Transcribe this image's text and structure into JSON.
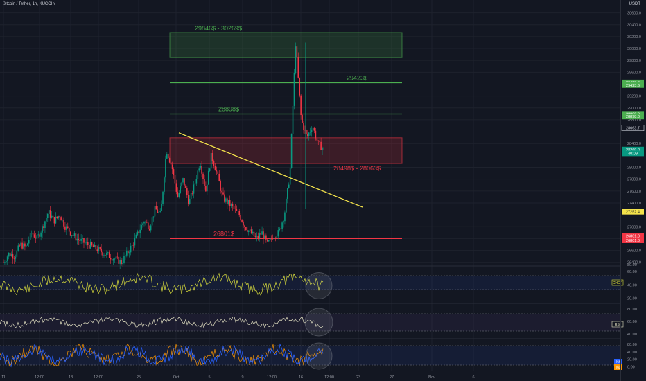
{
  "header": {
    "symbol_title": "Bitcoin / Tether, 1h, KUCOIN",
    "currency": "USDT"
  },
  "colors": {
    "background": "#131722",
    "grid": "#1e222d",
    "green": "#4caf50",
    "red": "#f23645",
    "yellow": "#f4e34b",
    "rsi_line": "#e8e6c6",
    "stoch_k": "#2962ff",
    "stoch_d": "#ff9800",
    "chop_line": "#dde13c"
  },
  "chart_data": {
    "type": "candlestick",
    "price_axis": {
      "ticks": [
        "30600.0",
        "30400.0",
        "30200.0",
        "30000.0",
        "29800.0",
        "29600.0",
        "29200.0",
        "29000.0",
        "28800.0",
        "28400.0",
        "28000.0",
        "27800.0",
        "27600.0",
        "27400.0",
        "27000.0",
        "26800.0",
        "26600.0",
        "26400.0"
      ],
      "range": [
        26350,
        30700
      ]
    },
    "time_axis": [
      "11",
      "12:00",
      "18",
      "12:00",
      "25",
      "Oct",
      "5",
      "9",
      "12:00",
      "16",
      "12:00",
      "23",
      "27",
      "Nov",
      "6"
    ],
    "price_labels": [
      {
        "text": "29423.6",
        "price": 29430,
        "color": "#4caf50"
      },
      {
        "text": "29423.6",
        "price": 29385,
        "color": "#4caf50"
      },
      {
        "text": "28898.0",
        "price": 28900,
        "color": "#4caf50"
      },
      {
        "text": "28898.0",
        "price": 28855,
        "color": "#4caf50"
      },
      {
        "text": "28663.7",
        "price": 28663,
        "color": "#131722",
        "text_color": "#d1d4dc",
        "border": "#d1d4dc"
      },
      {
        "text": "28269.0",
        "price": 28300,
        "color": "#089981"
      },
      {
        "text": "40:09",
        "price": 28235,
        "color": "#089981"
      },
      {
        "text": "27252.4",
        "price": 27252,
        "color": "#f4e34b",
        "text_color": "#131722"
      },
      {
        "text": "26801.0",
        "price": 26845,
        "color": "#f23645"
      },
      {
        "text": "26801.0",
        "price": 26770,
        "color": "#f23645"
      }
    ],
    "zones": [
      {
        "label": "29846$ - 30269$",
        "low": 29846,
        "high": 30269,
        "kind": "resistance",
        "color": "#4caf50"
      },
      {
        "label": "28498$ - 28063$",
        "low": 28063,
        "high": 28498,
        "kind": "zone",
        "color": "#f23645"
      }
    ],
    "levels": [
      {
        "label": "29423$",
        "price": 29423,
        "color": "#4caf50"
      },
      {
        "label": "28898$",
        "price": 28898,
        "color": "#4caf50"
      },
      {
        "label": "26801$",
        "price": 26801,
        "color": "#f23645"
      }
    ],
    "trendline": {
      "from_price": 28580,
      "to_price": 27330,
      "color": "#f4e34b"
    },
    "candles_approx_path": [
      26400,
      26550,
      26500,
      26700,
      26650,
      26900,
      26800,
      27000,
      27250,
      27100,
      27200,
      27000,
      26900,
      26800,
      26750,
      26700,
      26650,
      26600,
      26550,
      26500,
      26450,
      26400,
      26550,
      26700,
      26900,
      27100,
      27000,
      27300,
      27200,
      28300,
      28000,
      27500,
      27800,
      27400,
      27700,
      28100,
      27600,
      28200,
      27900,
      27500,
      27400,
      27300,
      27200,
      27000,
      26900,
      26800,
      26900,
      26700,
      26850,
      26900,
      27200,
      27900,
      30100,
      28800,
      28500,
      28700,
      28400,
      28300
    ],
    "indicators": [
      {
        "name": "CHOP",
        "axis_ticks": [
          "60.00",
          "40.00",
          "20.00"
        ],
        "top_tick": "80.00",
        "badge": "CHOP",
        "badge_color": "#dde13c"
      },
      {
        "name": "RSI",
        "axis_ticks": [
          "80.00",
          "60.00",
          "40.00"
        ],
        "badge": "RSI",
        "badge_color": "#e8e6c6"
      },
      {
        "name": "STOCH",
        "axis_ticks": [
          "80.00",
          "40.00",
          "20.00",
          "0.00"
        ],
        "badges": [
          {
            "text": "%K",
            "color": "#2962ff"
          },
          {
            "text": "%D",
            "color": "#ff9800"
          }
        ]
      }
    ]
  }
}
